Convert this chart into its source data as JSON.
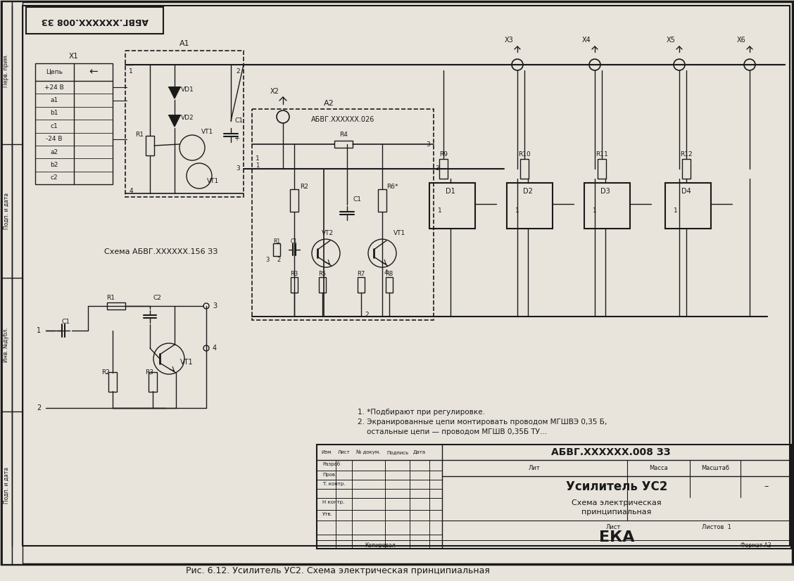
{
  "bg_color": "#e8e4dc",
  "line_color": "#1a1a1a",
  "title_stamp_text": "АБВГ.XXXXXX.008 ЗЗ",
  "stamp_title": "Усилитель УС2",
  "stamp_org": "ЕКА",
  "caption": "Рис. 6.12. Усилитель УС2. Схема электрическая принципиальная",
  "rotated_stamp": "АБВГ.XXXXXX.008 ЗЗ",
  "schema_title": "Схема АБВГ.XXXXXX.156 ЗЗ",
  "a2_label": "АБВГ.XXXXXX.026",
  "notes_line1": "1. *Подбирают при регулировке.",
  "notes_line2": "2. Экранированные цепи монтировать проводом МГШВЭ 0,35 Б,",
  "notes_line3": "    остальные цепи — проводом МГШВ 0,35Б ТУ...",
  "kopiroval": "Копировал",
  "format_text": "Формат А3",
  "lit_text": "Лит",
  "massa_text": "Масса",
  "masshtab_text": "Масштаб",
  "list_text": "Лист",
  "listov_text": "Листов  1",
  "dash_text": "–",
  "schema_elec": "Схема электрическая",
  "principialnaya": "принципиальная"
}
